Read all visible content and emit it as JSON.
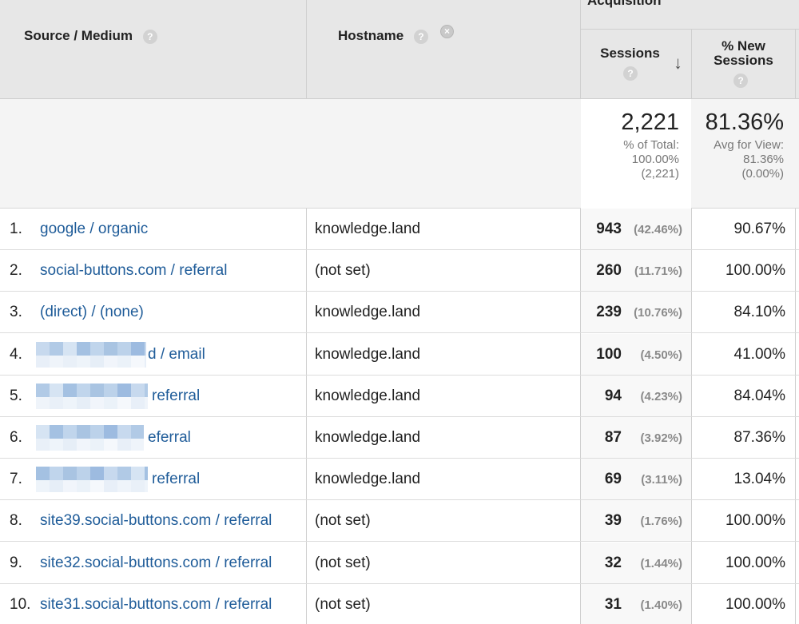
{
  "colors": {
    "link": "#1f5c99",
    "header_bg": "#e7e7e7",
    "totals_bg": "#f4f4f4"
  },
  "header": {
    "group_label": "Acquisition",
    "source_medium": "Source / Medium",
    "hostname": "Hostname",
    "sessions": "Sessions",
    "new_sessions_line1": "% New",
    "new_sessions_line2": "Sessions",
    "help_glyph": "?",
    "remove_glyph": "×",
    "sort_glyph": "↓"
  },
  "totals": {
    "sessions_value": "2,221",
    "sessions_sub1": "% of Total:",
    "sessions_sub2": "100.00%",
    "sessions_sub3": "(2,221)",
    "new_value": "81.36%",
    "new_sub1": "Avg for View:",
    "new_sub2": "81.36%",
    "new_sub3": "(0.00%)"
  },
  "rows": [
    {
      "num": "1.",
      "source": "google / organic",
      "host": "knowledge.land",
      "sessions": "943",
      "pct": "(42.46%)",
      "new": "90.67%"
    },
    {
      "num": "2.",
      "source": "social-buttons.com / referral",
      "host": "(not set)",
      "sessions": "260",
      "pct": "(11.71%)",
      "new": "100.00%"
    },
    {
      "num": "3.",
      "source": "(direct) / (none)",
      "host": "knowledge.land",
      "sessions": "239",
      "pct": "(10.76%)",
      "new": "84.10%"
    },
    {
      "num": "4.",
      "source": "d / email",
      "host": "knowledge.land",
      "sessions": "100",
      "pct": "(4.50%)",
      "new": "41.00%"
    },
    {
      "num": "5.",
      "source": "referral",
      "host": "knowledge.land",
      "sessions": "94",
      "pct": "(4.23%)",
      "new": "84.04%"
    },
    {
      "num": "6.",
      "source": "eferral",
      "host": "knowledge.land",
      "sessions": "87",
      "pct": "(3.92%)",
      "new": "87.36%"
    },
    {
      "num": "7.",
      "source": "referral",
      "host": "knowledge.land",
      "sessions": "69",
      "pct": "(3.11%)",
      "new": "13.04%"
    },
    {
      "num": "8.",
      "source": "site39.social-buttons.com / referral",
      "host": "(not set)",
      "sessions": "39",
      "pct": "(1.76%)",
      "new": "100.00%"
    },
    {
      "num": "9.",
      "source": "site32.social-buttons.com / referral",
      "host": "(not set)",
      "sessions": "32",
      "pct": "(1.44%)",
      "new": "100.00%"
    },
    {
      "num": "10.",
      "source": "site31.social-buttons.com / referral",
      "host": "(not set)",
      "sessions": "31",
      "pct": "(1.40%)",
      "new": "100.00%"
    }
  ]
}
